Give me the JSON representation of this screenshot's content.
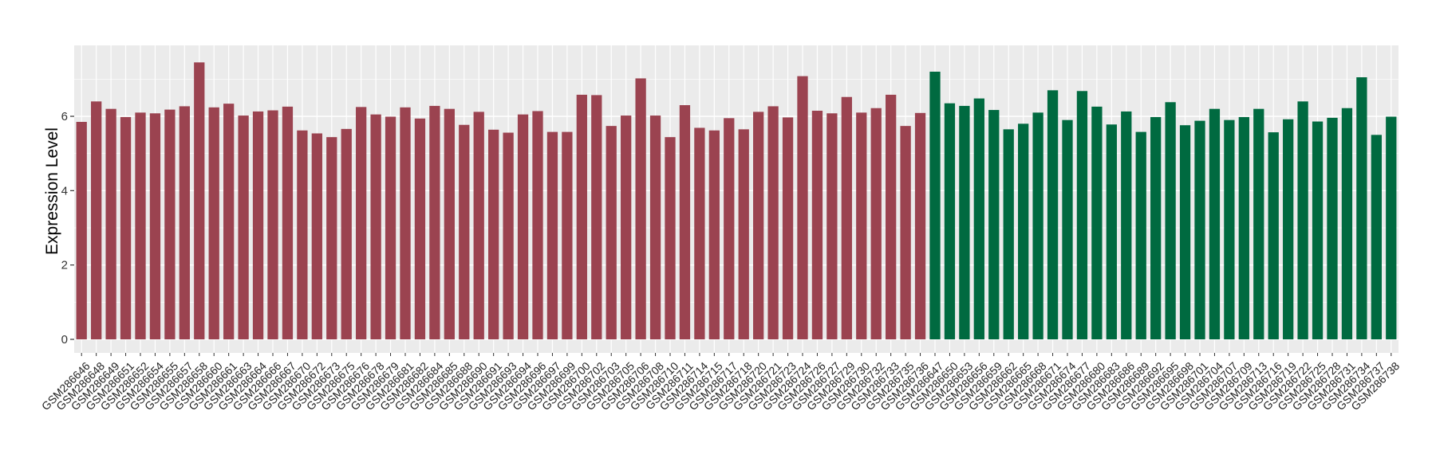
{
  "chart_data": {
    "type": "bar",
    "title": "",
    "xlabel": "",
    "ylabel": "Expression Level",
    "ylim": [
      0,
      7.8
    ],
    "yticks": [
      0,
      2,
      4,
      6
    ],
    "grid": true,
    "legend": "none",
    "colors": {
      "group_a": "#9b4350",
      "group_b": "#006a40",
      "panel": "#ebebeb",
      "gridline": "#ffffff"
    },
    "groups": [
      {
        "color_key": "group_a",
        "categories": [
          "GSM286646",
          "GSM286648",
          "GSM286649",
          "GSM286651",
          "GSM286652",
          "GSM286654",
          "GSM286655",
          "GSM286657",
          "GSM286658",
          "GSM286660",
          "GSM286661",
          "GSM286663",
          "GSM286664",
          "GSM286666",
          "GSM286667",
          "GSM286670",
          "GSM286672",
          "GSM286673",
          "GSM286675",
          "GSM286676",
          "GSM286678",
          "GSM286679",
          "GSM286681",
          "GSM286682",
          "GSM286684",
          "GSM286685",
          "GSM286688",
          "GSM286690",
          "GSM286691",
          "GSM286693",
          "GSM286694",
          "GSM286696",
          "GSM286697",
          "GSM286699",
          "GSM286700",
          "GSM286702",
          "GSM286703",
          "GSM286705",
          "GSM286706",
          "GSM286708",
          "GSM286710",
          "GSM286711",
          "GSM286714",
          "GSM286715",
          "GSM286717",
          "GSM286718",
          "GSM286720",
          "GSM286721",
          "GSM286723",
          "GSM286724",
          "GSM286726",
          "GSM286727",
          "GSM286729",
          "GSM286730",
          "GSM286732",
          "GSM286733",
          "GSM286735",
          "GSM286736"
        ],
        "values": [
          5.85,
          6.4,
          6.2,
          5.98,
          6.1,
          6.08,
          6.18,
          6.27,
          7.45,
          6.24,
          6.34,
          6.02,
          6.13,
          6.16,
          6.26,
          5.62,
          5.54,
          5.44,
          5.66,
          6.25,
          6.05,
          5.99,
          6.24,
          5.94,
          6.28,
          6.2,
          5.77,
          6.12,
          5.64,
          5.56,
          6.05,
          6.14,
          5.58,
          5.58,
          6.58,
          6.57,
          5.74,
          6.02,
          7.02,
          6.02,
          5.44,
          6.3,
          5.69,
          5.62,
          5.95,
          5.65,
          6.12,
          6.27,
          5.97,
          7.08,
          6.15,
          6.08,
          6.52,
          6.1,
          6.22,
          6.58,
          5.74,
          6.09
        ]
      },
      {
        "color_key": "group_b",
        "categories": [
          "GSM286647",
          "GSM286650",
          "GSM286653",
          "GSM286656",
          "GSM286659",
          "GSM286662",
          "GSM286665",
          "GSM286668",
          "GSM286671",
          "GSM286674",
          "GSM286677",
          "GSM286680",
          "GSM286683",
          "GSM286686",
          "GSM286689",
          "GSM286692",
          "GSM286695",
          "GSM286698",
          "GSM286701",
          "GSM286704",
          "GSM286707",
          "GSM286709",
          "GSM286713",
          "GSM286716",
          "GSM286719",
          "GSM286722",
          "GSM286725",
          "GSM286728",
          "GSM286731",
          "GSM286734",
          "GSM286737",
          "GSM286738"
        ],
        "values": [
          7.2,
          6.35,
          6.28,
          6.48,
          6.17,
          5.65,
          5.8,
          6.1,
          6.7,
          5.9,
          6.68,
          6.26,
          5.78,
          6.13,
          5.58,
          5.98,
          6.38,
          5.76,
          5.88,
          6.2,
          5.9,
          5.98,
          6.2,
          5.57,
          5.92,
          6.4,
          5.86,
          5.96,
          6.22,
          7.05,
          5.5,
          5.99
        ]
      }
    ]
  }
}
